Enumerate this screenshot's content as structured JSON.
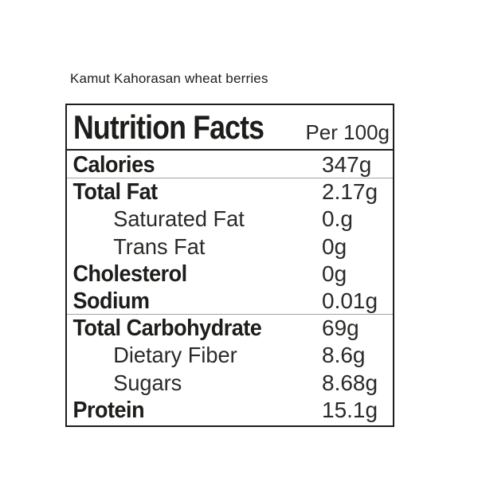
{
  "page": {
    "background_color": "#ffffff",
    "text_color": "#1d1d1b"
  },
  "product": {
    "title": "Kamut Kahorasan wheat berries"
  },
  "label": {
    "header": {
      "title": "Nutrition Facts",
      "serving": "Per 100g"
    },
    "rows": [
      {
        "name": "Calories",
        "value": "347g",
        "style": "bold",
        "separator_below": "thin"
      },
      {
        "name": "Total Fat",
        "value": "2.17g",
        "style": "bold",
        "separator_below": "none"
      },
      {
        "name": "Saturated Fat",
        "value": "0.g",
        "style": "indent",
        "separator_below": "none"
      },
      {
        "name": "Trans Fat",
        "value": "0g",
        "style": "indent",
        "separator_below": "none"
      },
      {
        "name": "Cholesterol",
        "value": "0g",
        "style": "bold",
        "separator_below": "none"
      },
      {
        "name": "Sodium",
        "value": "0.01g",
        "style": "bold",
        "separator_below": "thin"
      },
      {
        "name": "Total Carbohydrate",
        "value": "69g",
        "style": "bold",
        "separator_below": "none"
      },
      {
        "name": "Dietary Fiber",
        "value": "8.6g",
        "style": "indent",
        "separator_below": "none"
      },
      {
        "name": "Sugars",
        "value": "8.68g",
        "style": "indent",
        "separator_below": "none"
      },
      {
        "name": "Protein",
        "value": "15.1g",
        "style": "bold",
        "separator_below": "none"
      }
    ],
    "colors": {
      "border": "#1d1d1b",
      "thick_rule": "#1d1d1b",
      "thin_rule": "#a3a3a3",
      "bold_text": "#1d1d1b",
      "light_text": "#2a2a28"
    }
  }
}
